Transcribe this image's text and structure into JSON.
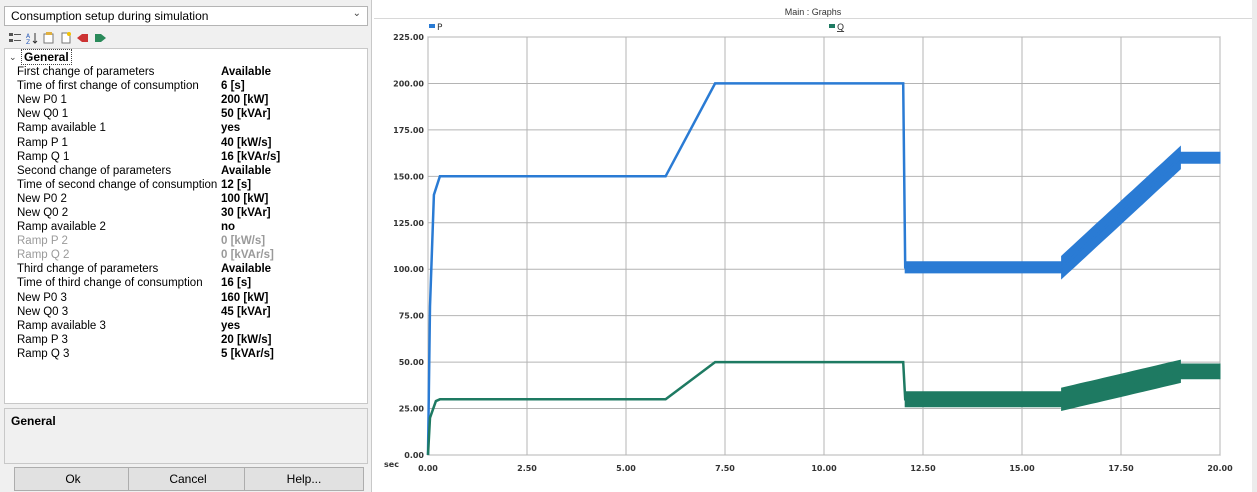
{
  "panel": {
    "title": "Consumption setup during simulation",
    "toolbar_icons": [
      "categorized-icon",
      "sort-alpha-icon",
      "property-pages-icon",
      "new-page-icon",
      "import-icon",
      "export-icon"
    ],
    "category": "General",
    "rows": [
      {
        "name": "First change of parameters",
        "value": "Available",
        "disabled": false
      },
      {
        "name": "Time of first change of consumption",
        "value": "6 [s]",
        "disabled": false
      },
      {
        "name": "New P0 1",
        "value": "200 [kW]",
        "disabled": false
      },
      {
        "name": "New Q0 1",
        "value": "50 [kVAr]",
        "disabled": false
      },
      {
        "name": "Ramp available 1",
        "value": "yes",
        "disabled": false
      },
      {
        "name": "Ramp P 1",
        "value": "40 [kW/s]",
        "disabled": false
      },
      {
        "name": "Ramp Q 1",
        "value": "16 [kVAr/s]",
        "disabled": false
      },
      {
        "name": "Second change of parameters",
        "value": "Available",
        "disabled": false
      },
      {
        "name": "Time of second change of consumption",
        "value": "12 [s]",
        "disabled": false
      },
      {
        "name": "New P0 2",
        "value": "100 [kW]",
        "disabled": false
      },
      {
        "name": "New Q0 2",
        "value": "30 [kVAr]",
        "disabled": false
      },
      {
        "name": "Ramp available 2",
        "value": "no",
        "disabled": false
      },
      {
        "name": "Ramp P 2",
        "value": "0 [kW/s]",
        "disabled": true
      },
      {
        "name": "Ramp Q 2",
        "value": "0 [kVAr/s]",
        "disabled": true
      },
      {
        "name": "Third change of parameters",
        "value": "Available",
        "disabled": false
      },
      {
        "name": "Time of third change of consumption",
        "value": "16 [s]",
        "disabled": false
      },
      {
        "name": "New P0 3",
        "value": "160 [kW]",
        "disabled": false
      },
      {
        "name": "New Q0 3",
        "value": "45 [kVAr]",
        "disabled": false
      },
      {
        "name": "Ramp available 3",
        "value": "yes",
        "disabled": false
      },
      {
        "name": "Ramp P 3",
        "value": "20 [kW/s]",
        "disabled": false
      },
      {
        "name": "Ramp Q 3",
        "value": "5 [kVAr/s]",
        "disabled": false
      }
    ],
    "description_title": "General",
    "buttons": {
      "ok": "Ok",
      "cancel": "Cancel",
      "help": "Help..."
    }
  },
  "graph": {
    "window_title": "Main : Graphs",
    "x_unit_label": "sec",
    "colors": {
      "P": "#2a7bd4",
      "Q": "#1e7a62",
      "grid": "#b4b4b4",
      "bg": "#ffffff"
    },
    "chart_data": {
      "type": "line",
      "title": "Main : Graphs",
      "xlabel": "sec",
      "ylabel": "",
      "xlim": [
        0,
        20
      ],
      "ylim": [
        0,
        225
      ],
      "x_ticks": [
        "0.00",
        "2.50",
        "5.00",
        "7.50",
        "10.00",
        "12.50",
        "15.00",
        "17.50",
        "20.00"
      ],
      "y_ticks": [
        "0.00",
        "25.00",
        "50.00",
        "75.00",
        "100.00",
        "125.00",
        "150.00",
        "175.00",
        "200.00",
        "225.00"
      ],
      "grid": true,
      "legend_position": "top",
      "series": [
        {
          "name": "P",
          "color": "#2a7bd4",
          "points": [
            [
              0,
              0
            ],
            [
              0.05,
              80
            ],
            [
              0.15,
              140
            ],
            [
              0.3,
              150
            ],
            [
              6,
              150
            ],
            [
              7.25,
              200
            ],
            [
              12,
              200
            ],
            [
              12.05,
              101
            ],
            [
              16,
              101
            ],
            [
              19,
              160
            ],
            [
              20,
              160
            ]
          ],
          "band": [
            [
              12.05,
              16,
              3
            ],
            [
              16,
              19,
              6
            ],
            [
              19,
              20,
              3
            ]
          ]
        },
        {
          "name": "Q",
          "color": "#1e7a62",
          "points": [
            [
              0,
              0
            ],
            [
              0.05,
              20
            ],
            [
              0.2,
              29
            ],
            [
              0.3,
              30
            ],
            [
              6,
              30
            ],
            [
              7.25,
              50
            ],
            [
              12,
              50
            ],
            [
              12.05,
              30
            ],
            [
              16,
              30
            ],
            [
              19,
              45
            ],
            [
              20,
              45
            ]
          ],
          "band": [
            [
              12.05,
              16,
              4
            ],
            [
              16,
              19,
              6
            ],
            [
              19,
              20,
              4
            ]
          ]
        }
      ]
    }
  }
}
